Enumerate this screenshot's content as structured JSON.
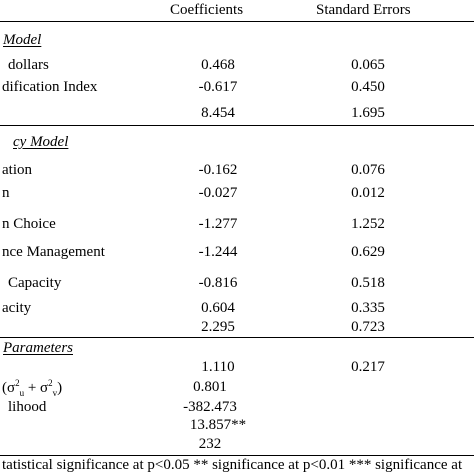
{
  "header": {
    "col1": "Coefficients",
    "col2": "Standard Errors"
  },
  "sections": [
    {
      "title": "Model",
      "rows": [
        {
          "label": "dollars",
          "coef": "0.468",
          "se": "0.065"
        },
        {
          "label": "dification Index",
          "coef": "-0.617",
          "se": "0.450"
        },
        {
          "label": "",
          "coef": "8.454",
          "se": "1.695"
        }
      ]
    },
    {
      "title": "cy Model",
      "rows": [
        {
          "label": "ation",
          "coef": "-0.162",
          "se": "0.076"
        },
        {
          "label": "n",
          "coef": "-0.027",
          "se": "0.012"
        },
        {
          "label": "n Choice",
          "coef": "-1.277",
          "se": "1.252"
        },
        {
          "label": "nce Management",
          "coef": "-1.244",
          "se": "0.629"
        },
        {
          "label": "Capacity",
          "coef": "-0.816",
          "se": "0.518"
        },
        {
          "label": "acity",
          "coef": "0.604",
          "se": "0.335"
        },
        {
          "label": "",
          "coef": "2.295",
          "se": "0.723"
        }
      ]
    },
    {
      "title": "Parameters",
      "rows": [
        {
          "label": "",
          "coef": "1.110",
          "se": "0.217"
        },
        {
          "label_prefix": "(σ",
          "label_u": "u",
          "label_mid": " + σ",
          "label_v": "v",
          "label_suffix": ")",
          "sup": "2",
          "coef": "0.801",
          "se": ""
        },
        {
          "label": "lihood",
          "coef": "-382.473",
          "se": ""
        },
        {
          "label": "",
          "coef": "13.857**",
          "se": ""
        },
        {
          "label": "",
          "coef": "232",
          "se": ""
        }
      ]
    }
  ],
  "footnote": "tatistical significance at p<0.05 ** significance at p<0.01 *** significance at"
}
